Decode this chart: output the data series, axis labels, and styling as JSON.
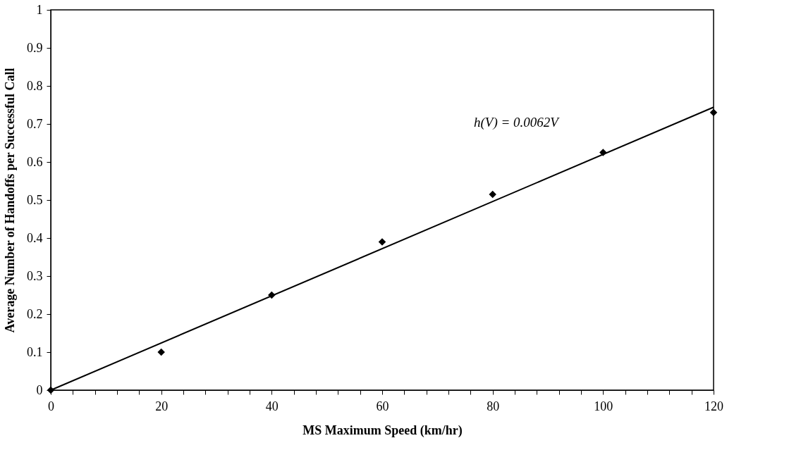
{
  "chart_data": {
    "type": "scatter",
    "xlabel": "MS Maximum Speed (km/hr)",
    "ylabel": "Average Number of Handoffs per Successful Call",
    "x": [
      0,
      20,
      40,
      60,
      80,
      100,
      120
    ],
    "series": [
      {
        "color": "#000000",
        "marker": "diamond",
        "values": [
          0,
          0.1,
          0.25,
          0.39,
          0.515,
          0.625,
          0.73
        ]
      },
      {
        "type": "line",
        "color": "#000000",
        "marker": "none",
        "line_style": "solid",
        "x": [
          0,
          120
        ],
        "values": [
          0,
          0.744
        ]
      }
    ],
    "xlim": [
      0,
      120
    ],
    "ylim": [
      0,
      1
    ],
    "xticks": [
      0,
      {
        "value": 4,
        "label": null
      },
      {
        "value": 8,
        "label": null
      },
      {
        "value": 12,
        "label": null
      },
      {
        "value": 16,
        "label": null
      },
      20,
      {
        "value": 24,
        "label": null
      },
      {
        "value": 28,
        "label": null
      },
      {
        "value": 32,
        "label": null
      },
      {
        "value": 36,
        "label": null
      },
      40,
      {
        "value": 44,
        "label": null
      },
      {
        "value": 48,
        "label": null
      },
      {
        "value": 52,
        "label": null
      },
      {
        "value": 56,
        "label": null
      },
      60,
      {
        "value": 64,
        "label": null
      },
      {
        "value": 68,
        "label": null
      },
      {
        "value": 72,
        "label": null
      },
      {
        "value": 76,
        "label": null
      },
      80,
      {
        "value": 84,
        "label": null
      },
      {
        "value": 88,
        "label": null
      },
      {
        "value": 92,
        "label": null
      },
      {
        "value": 96,
        "label": null
      },
      100,
      {
        "value": 104,
        "label": null
      },
      {
        "value": 108,
        "label": null
      },
      {
        "value": 112,
        "label": null
      },
      {
        "value": 116,
        "label": null
      },
      120
    ],
    "yticks": [
      0,
      0.1,
      0.2,
      0.3,
      0.4,
      0.5,
      0.6,
      0.7,
      0.8,
      0.9,
      1
    ],
    "annotations": [
      "h(V) = 0.0062V"
    ],
    "grid": false
  }
}
